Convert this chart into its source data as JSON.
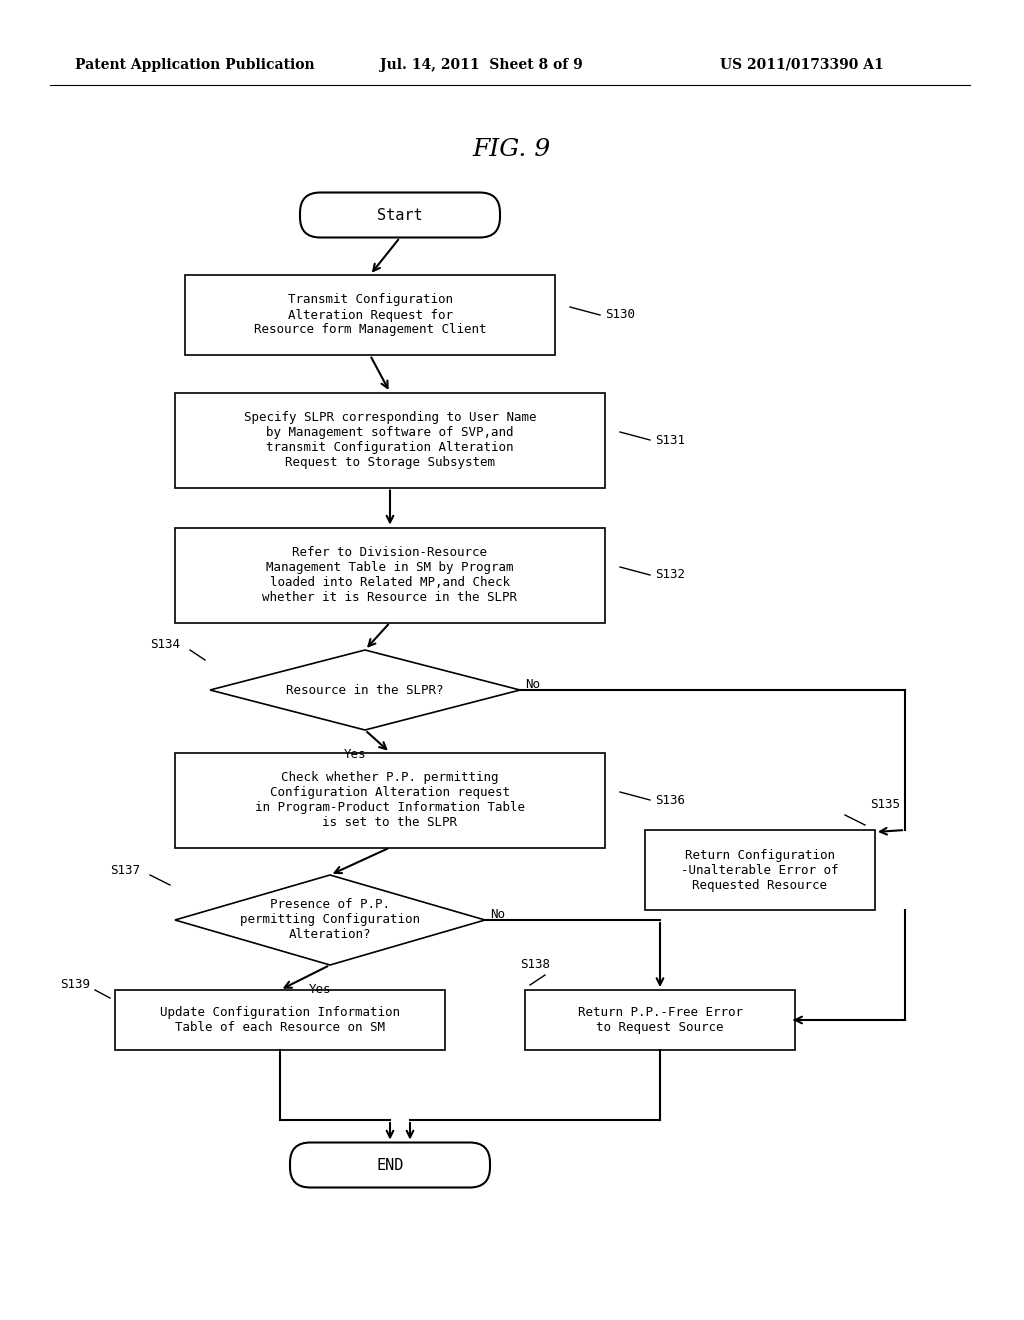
{
  "title": "FIG. 9",
  "header_left": "Patent Application Publication",
  "header_mid": "Jul. 14, 2011  Sheet 8 of 9",
  "header_right": "US 2011/0173390 A1",
  "background_color": "#ffffff",
  "nodes": {
    "start": {
      "label": "Start",
      "type": "stadium"
    },
    "s130": {
      "label": "Transmit Configuration\nAlteration Request for\nResource form Management Client",
      "type": "rect",
      "tag": "S130"
    },
    "s131": {
      "label": "Specify SLPR corresponding to User Name\nby Management software of SVP,and\ntransmit Configuration Alteration\nRequest to Storage Subsystem",
      "type": "rect",
      "tag": "S131"
    },
    "s132": {
      "label": "Refer to Division-Resource\nManagement Table in SM by Program\nloaded into Related MP,and Check\nwhether it is Resource in the SLPR",
      "type": "rect",
      "tag": "S132"
    },
    "s134": {
      "label": "Resource in the SLPR?",
      "type": "diamond",
      "tag": "S134"
    },
    "s136": {
      "label": "Check whether P.P. permitting\nConfiguration Alteration request\nin Program-Product Information Table\nis set to the SLPR",
      "type": "rect",
      "tag": "S136"
    },
    "s137": {
      "label": "Presence of P.P.\npermitting Configuration\nAlteration?",
      "type": "diamond",
      "tag": "S137"
    },
    "s139": {
      "label": "Update Configuration Information\nTable of each Resource on SM",
      "type": "rect",
      "tag": "S139"
    },
    "s135": {
      "label": "Return Configuration\n-Unalterable Error of\nRequested Resource",
      "type": "rect",
      "tag": "S135"
    },
    "s138": {
      "label": "Return P.P.-Free Error\nto Request Source",
      "type": "rect",
      "tag": "S138"
    },
    "end": {
      "label": "END",
      "type": "stadium"
    }
  }
}
